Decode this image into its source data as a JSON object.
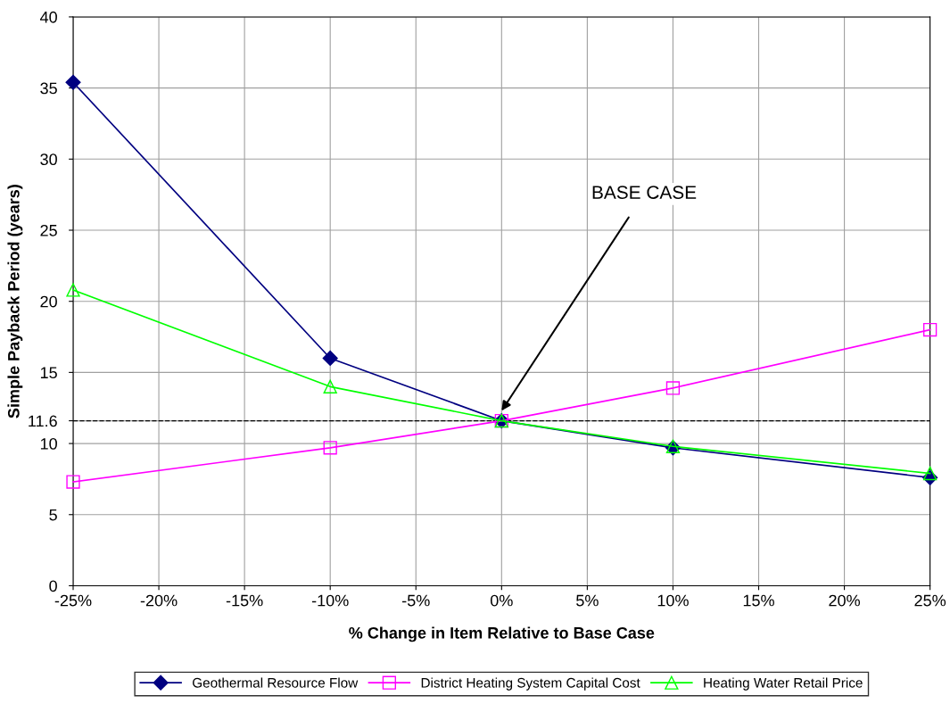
{
  "chart_data": {
    "type": "line",
    "xlabel": "% Change in Item Relative to Base Case",
    "ylabel": "Simple Payback Period (years)",
    "x": [
      -25,
      -10,
      0,
      10,
      25
    ],
    "series": [
      {
        "name": "Geothermal Resource Flow",
        "color": "#000080",
        "values": [
          35.4,
          16.0,
          11.6,
          9.7,
          7.6
        ],
        "marker": "diamond"
      },
      {
        "name": "District Heating System Capital Cost",
        "color": "#ff00ff",
        "values": [
          7.3,
          9.7,
          11.6,
          13.9,
          18.0
        ],
        "marker": "square"
      },
      {
        "name": "Heating Water Retail Price",
        "color": "#00ff00",
        "values": [
          20.8,
          14.0,
          11.6,
          9.8,
          7.9
        ],
        "marker": "triangle"
      }
    ],
    "xlim": [
      -25,
      25
    ],
    "xticks": [
      {
        "value": -25,
        "label": "-25%"
      },
      {
        "value": -20,
        "label": "-20%"
      },
      {
        "value": -15,
        "label": "-15%"
      },
      {
        "value": -10,
        "label": "-10%"
      },
      {
        "value": -5,
        "label": "-5%"
      },
      {
        "value": 0,
        "label": "0%"
      },
      {
        "value": 5,
        "label": "5%"
      },
      {
        "value": 10,
        "label": "10%"
      },
      {
        "value": 15,
        "label": "15%"
      },
      {
        "value": 20,
        "label": "20%"
      },
      {
        "value": 25,
        "label": "25%"
      }
    ],
    "ylim": [
      0,
      40
    ],
    "yticks": [
      0,
      5,
      10,
      11.6,
      15,
      20,
      25,
      30,
      35,
      40
    ],
    "ref_lines": [
      {
        "axis": "y",
        "value": 11.6,
        "label": null,
        "color": "#000000",
        "line_style": "dashed"
      }
    ],
    "annotations": [
      {
        "text": "BASE CASE",
        "x": 0,
        "y": 12.3
      }
    ],
    "grid": true,
    "legend": "bottom",
    "line_style": "solid"
  }
}
